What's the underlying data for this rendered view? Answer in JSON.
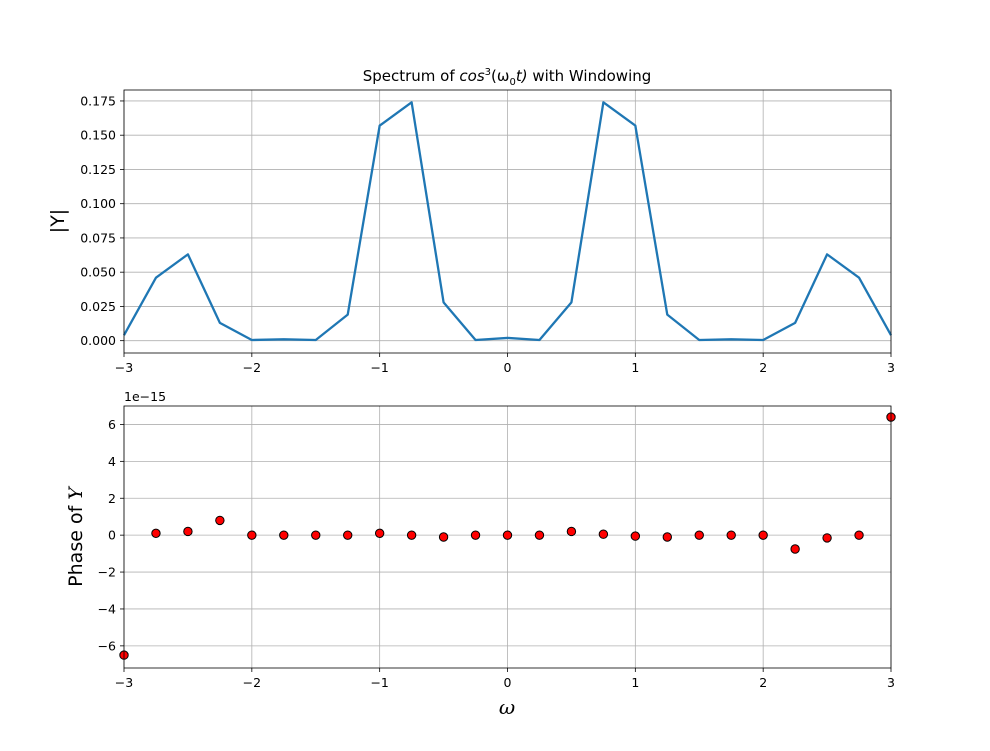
{
  "chart_data": [
    {
      "type": "line",
      "title_prefix": "Spectrum of ",
      "title_math": "cos",
      "title_sup": "3",
      "title_math2": "(ω",
      "title_sub": "0",
      "title_math3": "t)",
      "title_suffix": " with Windowing",
      "ylabel": "|Y|",
      "xlabel": "",
      "xlim": [
        -3,
        3
      ],
      "ylim": [
        -0.009,
        0.183
      ],
      "grid": true,
      "color": "#1f77b4",
      "xticks": [
        -3,
        -2,
        -1,
        0,
        1,
        2,
        3
      ],
      "xtick_labels": [
        "−3",
        "−2",
        "−1",
        "0",
        "1",
        "2",
        "3"
      ],
      "yticks": [
        0.0,
        0.025,
        0.05,
        0.075,
        0.1,
        0.125,
        0.15,
        0.175
      ],
      "ytick_labels": [
        "0.000",
        "0.025",
        "0.050",
        "0.075",
        "0.100",
        "0.125",
        "0.150",
        "0.175"
      ],
      "series": [
        {
          "x": [
            -3,
            -2.75,
            -2.5,
            -2.25,
            -2,
            -1.75,
            -1.5,
            -1.25,
            -1,
            -0.75,
            -0.5,
            -0.25,
            0,
            0.25,
            0.5,
            0.75,
            1,
            1.25,
            1.5,
            1.75,
            2,
            2.25,
            2.5,
            2.75,
            3
          ],
          "y": [
            0.004,
            0.046,
            0.063,
            0.013,
            0.0005,
            0.001,
            0.0005,
            0.019,
            0.157,
            0.174,
            0.028,
            0.0005,
            0.002,
            0.0005,
            0.028,
            0.174,
            0.157,
            0.019,
            0.0005,
            0.001,
            0.0005,
            0.013,
            0.063,
            0.046,
            0.004
          ]
        }
      ]
    },
    {
      "type": "scatter",
      "ylabel_prefix": "Phase of ",
      "ylabel_var": "Y",
      "xlabel": "ω",
      "offset_text": "1e−15",
      "xlim": [
        -3,
        3
      ],
      "ylim": [
        -7.2,
        7.0
      ],
      "grid": true,
      "marker_fill": "#ff0000",
      "marker_edge": "#000000",
      "xticks": [
        -3,
        -2,
        -1,
        0,
        1,
        2,
        3
      ],
      "xtick_labels": [
        "−3",
        "−2",
        "−1",
        "0",
        "1",
        "2",
        "3"
      ],
      "yticks": [
        -6,
        -4,
        -2,
        0,
        2,
        4,
        6
      ],
      "ytick_labels": [
        "−6",
        "−4",
        "−2",
        "0",
        "2",
        "4",
        "6"
      ],
      "series": [
        {
          "x": [
            -3,
            -2.75,
            -2.5,
            -2.25,
            -2,
            -1.75,
            -1.5,
            -1.25,
            -1,
            -0.75,
            -0.5,
            -0.25,
            0,
            0.25,
            0.5,
            0.75,
            1,
            1.25,
            1.5,
            1.75,
            2,
            2.25,
            2.5,
            2.75,
            3
          ],
          "y": [
            -6.5,
            0.1,
            0.2,
            0.8,
            0.0,
            0.0,
            0.0,
            0.0,
            0.1,
            0.0,
            -0.1,
            0.0,
            0.0,
            0.0,
            0.2,
            0.05,
            -0.05,
            -0.1,
            0.0,
            0.0,
            0.0,
            -0.75,
            -0.15,
            0.0,
            6.4
          ]
        }
      ]
    }
  ]
}
